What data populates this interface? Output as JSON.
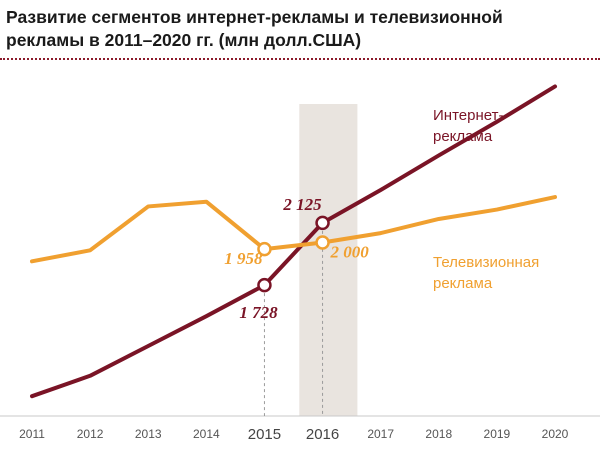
{
  "title_line1": "Развитие сегментов интернет-рекламы и телевизионной",
  "title_line2": "рекламы в 2011–2020 гг. (млн долл.США)",
  "colors": {
    "internet": "#7a1426",
    "tv": "#f0a030",
    "highlight": "#e9e4df"
  },
  "chart_data": {
    "type": "line",
    "title": "Развитие сегментов интернет-рекламы и телевизионной рекламы в 2011–2020 гг. (млн долл.США)",
    "x": [
      2011,
      2012,
      2013,
      2014,
      2015,
      2016,
      2017,
      2018,
      2019,
      2020
    ],
    "ylim": [
      900,
      3100
    ],
    "highlight_x": [
      2015.6,
      2016.6
    ],
    "emphasized_ticks": [
      2015,
      2016
    ],
    "series": [
      {
        "name_line1": "Интернет-",
        "name_line2": "реклама",
        "color_key": "internet",
        "values": [
          1020,
          1150,
          1340,
          1530,
          1728,
          2125,
          2335,
          2555,
          2770,
          2995
        ]
      },
      {
        "name_line1": "Телевизионная",
        "name_line2": "реклама",
        "color_key": "tv",
        "values": [
          1880,
          1950,
          2230,
          2260,
          1958,
          2000,
          2060,
          2150,
          2210,
          2290
        ]
      }
    ],
    "annotations": [
      {
        "series": 1,
        "x": 2015,
        "label": "1 958"
      },
      {
        "series": 0,
        "x": 2015,
        "label": "1 728"
      },
      {
        "series": 0,
        "x": 2016,
        "label": "2 125"
      },
      {
        "series": 1,
        "x": 2016,
        "label": "2 000"
      }
    ]
  }
}
